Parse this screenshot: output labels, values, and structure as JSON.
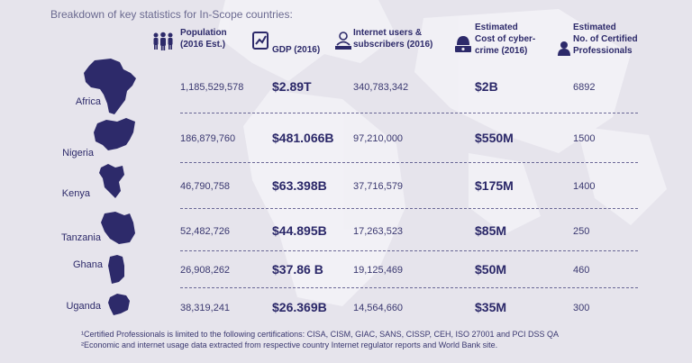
{
  "caption": "Breakdown of key statistics for In-Scope countries:",
  "headers": {
    "population": [
      "Population",
      "(2016 Est.)"
    ],
    "gdp": [
      "GDP (2016)"
    ],
    "internet": [
      "Internet users &",
      "subscribers (2016)"
    ],
    "cost": [
      "Estimated",
      "Cost of cyber-",
      "crime (2016)"
    ],
    "professionals": [
      "Estimated",
      "No. of Certified",
      "Professionals"
    ]
  },
  "rows": [
    {
      "country": "Africa",
      "population": "1,185,529,578",
      "gdp": "$2.89T",
      "internet": "340,783,342",
      "cost": "$2B",
      "professionals": "6892"
    },
    {
      "country": "Nigeria",
      "population": "186,879,760",
      "gdp": "$481.066B",
      "internet": "97,210,000",
      "cost": "$550M",
      "professionals": "1500"
    },
    {
      "country": "Kenya",
      "population": "46,790,758",
      "gdp": "$63.398B",
      "internet": "37,716,579",
      "cost": "$175M",
      "professionals": "1400"
    },
    {
      "country": "Tanzania",
      "population": "52,482,726",
      "gdp": "$44.895B",
      "internet": "17,263,523",
      "cost": "$85M",
      "professionals": "250"
    },
    {
      "country": "Ghana",
      "population": "26,908,262",
      "gdp": "$37.86 B",
      "internet": "19,125,469",
      "cost": "$50M",
      "professionals": "460"
    },
    {
      "country": "Uganda",
      "population": "38,319,241",
      "gdp": "$26.369B",
      "internet": "14,564,660",
      "cost": "$35M",
      "professionals": "300"
    }
  ],
  "notes": [
    "¹Certified Professionals is limited to the following certifications: CISA, CISM, GIAC, SANS, CISSP, CEH, ISO 27001 and PCI DSS QA",
    "²Economic and internet usage data extracted from respective country Internet regulator reports and World Bank site."
  ],
  "icons": {
    "population": "people-group-icon",
    "gdp": "chart-document-icon",
    "internet": "user-laptop-icon",
    "cost": "hacker-laptop-icon",
    "professionals": "certified-user-icon"
  },
  "colors": {
    "accent": "#2d2a6a",
    "background": "#e6e4ec"
  }
}
